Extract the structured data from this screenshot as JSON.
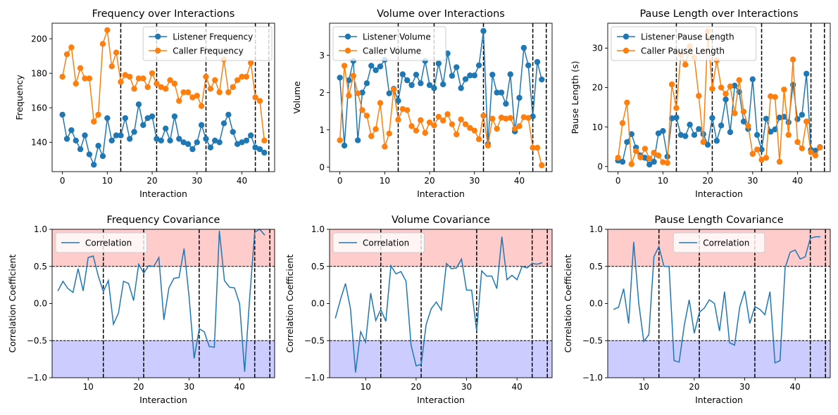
{
  "chart_data": [
    {
      "type": "line",
      "title": "Frequency over Interactions",
      "xlabel": "Interaction",
      "ylabel": "Frequency",
      "xlim": [
        -2.3,
        47.3
      ],
      "ylim": [
        123,
        209
      ],
      "xticks": [
        0,
        10,
        20,
        30,
        40
      ],
      "yticks": [
        140,
        160,
        180,
        200
      ],
      "markers": true,
      "legend": "top-right",
      "vlines": [
        13,
        21,
        32,
        43,
        46
      ],
      "x": [
        0,
        1,
        2,
        3,
        4,
        5,
        6,
        7,
        8,
        9,
        10,
        11,
        12,
        13,
        14,
        15,
        16,
        17,
        18,
        19,
        20,
        21,
        22,
        23,
        24,
        25,
        26,
        27,
        28,
        29,
        30,
        31,
        32,
        33,
        34,
        35,
        36,
        37,
        38,
        39,
        40,
        41,
        42,
        43,
        44,
        45
      ],
      "series": [
        {
          "name": "Listener Frequency",
          "color": "#1f77b4",
          "values": [
            156,
            142,
            147,
            141,
            136,
            144,
            133,
            127,
            138,
            132,
            154,
            141,
            144,
            144,
            154,
            142,
            146,
            162,
            150,
            154,
            155,
            142,
            141,
            148,
            141,
            155,
            142,
            140,
            139,
            136,
            140,
            150,
            142,
            137,
            141,
            140,
            151,
            156,
            146,
            139,
            140,
            141,
            144,
            137,
            136,
            134
          ]
        },
        {
          "name": "Caller Frequency",
          "color": "#ff7f0e",
          "values": [
            178,
            191,
            195,
            174,
            183,
            177,
            177,
            152,
            156,
            197,
            205,
            184,
            192,
            175,
            179,
            178,
            171,
            177,
            177,
            172,
            180,
            174,
            172,
            171,
            176,
            174,
            164,
            169,
            169,
            166,
            167,
            161,
            178,
            171,
            176,
            169,
            188,
            169,
            172,
            176,
            178,
            178,
            186,
            166,
            164,
            141
          ]
        }
      ]
    },
    {
      "type": "line",
      "title": "Volume over Interactions",
      "xlabel": "Interaction",
      "ylabel": "Volume",
      "xlim": [
        -2.3,
        47.3
      ],
      "ylim": [
        -0.12,
        3.86
      ],
      "xticks": [
        0,
        10,
        20,
        30,
        40
      ],
      "yticks": [
        0,
        1,
        2,
        3
      ],
      "markers": true,
      "legend": "top-left",
      "vlines": [
        13,
        21,
        32,
        43,
        46
      ],
      "x": [
        0,
        1,
        2,
        3,
        4,
        5,
        6,
        7,
        8,
        9,
        10,
        11,
        12,
        13,
        14,
        15,
        16,
        17,
        18,
        19,
        20,
        21,
        22,
        23,
        24,
        25,
        26,
        27,
        28,
        29,
        30,
        31,
        32,
        33,
        34,
        35,
        36,
        37,
        38,
        39,
        40,
        41,
        42,
        43,
        44,
        45
      ],
      "series": [
        {
          "name": "Listener Volume",
          "color": "#1f77b4",
          "values": [
            2.4,
            0.58,
            2.33,
            2.85,
            0.72,
            2.0,
            2.25,
            2.72,
            2.6,
            2.7,
            2.88,
            1.98,
            2.1,
            1.78,
            2.49,
            2.33,
            2.2,
            2.48,
            2.25,
            2.85,
            2.2,
            2.12,
            2.78,
            2.22,
            3.05,
            2.45,
            2.68,
            2.12,
            2.36,
            2.46,
            2.46,
            2.73,
            3.65,
            0.62,
            2.48,
            2.0,
            2.0,
            1.7,
            2.49,
            0.96,
            1.86,
            3.2,
            2.73,
            1.36,
            2.82,
            2.35
          ]
        },
        {
          "name": "Caller Volume",
          "color": "#ff7f0e",
          "values": [
            0.72,
            2.72,
            1.92,
            2.45,
            1.98,
            1.53,
            1.38,
            0.83,
            1.02,
            1.72,
            0.55,
            0.9,
            2.08,
            1.27,
            1.56,
            1.53,
            1.1,
            0.98,
            1.26,
            0.92,
            1.2,
            1.12,
            1.35,
            1.25,
            1.42,
            1.15,
            0.88,
            1.28,
            1.15,
            1.05,
            0.98,
            0.75,
            1.38,
            0.58,
            1.3,
            1.03,
            1.33,
            1.3,
            1.32,
            1.03,
            1.1,
            1.34,
            1.32,
            0.52,
            0.52,
            0.05
          ]
        }
      ]
    },
    {
      "type": "line",
      "title": "Pause Length over Interactions",
      "xlabel": "Interaction",
      "ylabel": "Pause Length (s)",
      "xlim": [
        -2.3,
        47.3
      ],
      "ylim": [
        -1.3,
        36.3
      ],
      "xticks": [
        0,
        10,
        20,
        30,
        40
      ],
      "yticks": [
        0,
        10,
        20,
        30
      ],
      "markers": true,
      "legend": "top-left",
      "vlines": [
        13,
        21,
        32,
        43,
        46
      ],
      "x": [
        0,
        1,
        2,
        3,
        4,
        5,
        6,
        7,
        8,
        9,
        10,
        11,
        12,
        13,
        14,
        15,
        16,
        17,
        18,
        19,
        20,
        21,
        22,
        23,
        24,
        25,
        26,
        27,
        28,
        29,
        30,
        31,
        32,
        33,
        34,
        35,
        36,
        37,
        38,
        39,
        40,
        41,
        42,
        43,
        44,
        45
      ],
      "series": [
        {
          "name": "Listener Pause Length",
          "color": "#1f77b4",
          "values": [
            1.5,
            1.2,
            6.2,
            8.2,
            4.8,
            2.8,
            2.2,
            0.5,
            1.2,
            8.4,
            9.0,
            2.5,
            12.2,
            12.4,
            8.0,
            7.7,
            10.6,
            8.0,
            9.5,
            8.2,
            5.5,
            12.3,
            6.5,
            10.4,
            17.0,
            8.7,
            20.5,
            18.9,
            11.4,
            9.5,
            22.1,
            8.0,
            4.3,
            12.1,
            8.8,
            9.4,
            12.4,
            12.6,
            11.2,
            20.7,
            12.0,
            13.1,
            23.5,
            4.2,
            4.0,
            4.9
          ]
        },
        {
          "name": "Caller Pause Length",
          "color": "#ff7f0e",
          "values": [
            2.2,
            11.0,
            16.2,
            0.6,
            3.9,
            2.3,
            4.5,
            2.0,
            3.5,
            2.8,
            1.1,
            0.9,
            20.8,
            14.8,
            28.5,
            25.8,
            30.4,
            27.6,
            17.9,
            6.2,
            34.3,
            19.7,
            26.9,
            20.0,
            18.4,
            20.3,
            13.5,
            21.9,
            13.9,
            10.3,
            3.2,
            4.3,
            1.7,
            2.2,
            17.8,
            17.6,
            1.2,
            19.5,
            8.0,
            27.1,
            6.2,
            4.6,
            11.4,
            3.6,
            2.8,
            4.8
          ]
        }
      ]
    },
    {
      "type": "line",
      "title": "Frequency Covariance",
      "xlabel": "Interaction",
      "ylabel": "Correlation Coefficient",
      "xlim": [
        2.85,
        46.95
      ],
      "ylim": [
        -1.0,
        1.0
      ],
      "xticks": [
        10,
        20,
        30,
        40
      ],
      "yticks": [
        -1.0,
        -0.5,
        0.0,
        0.5,
        1.0
      ],
      "markers": false,
      "legend": "top-left",
      "bands": [
        {
          "from": 0.5,
          "to": 1.0,
          "color": "#ffcccc"
        },
        {
          "from": -1.0,
          "to": -0.5,
          "color": "#ccccff"
        }
      ],
      "hlines": [
        0.5,
        -0.5
      ],
      "vlines": [
        13,
        21,
        32,
        43,
        46
      ],
      "x": [
        4,
        5,
        6,
        7,
        8,
        9,
        10,
        11,
        12,
        13,
        14,
        15,
        16,
        17,
        18,
        19,
        20,
        21,
        22,
        23,
        24,
        25,
        26,
        27,
        28,
        29,
        30,
        31,
        32,
        33,
        34,
        35,
        36,
        37,
        38,
        39,
        40,
        41,
        42,
        43,
        44,
        45
      ],
      "series": [
        {
          "name": "Correlation",
          "color": "#1f77b4",
          "values": [
            0.17,
            0.3,
            0.2,
            0.15,
            0.47,
            0.17,
            0.62,
            0.64,
            0.37,
            0.16,
            0.31,
            -0.28,
            -0.13,
            0.3,
            0.27,
            0.04,
            0.53,
            0.41,
            0.51,
            0.5,
            0.62,
            -0.22,
            0.21,
            0.34,
            0.35,
            0.74,
            0.09,
            -0.74,
            -0.34,
            -0.38,
            -0.58,
            -0.59,
            0.98,
            0.31,
            0.22,
            0.21,
            0.0,
            -0.92,
            0.07,
            0.96,
            1.0,
            0.92
          ]
        }
      ]
    },
    {
      "type": "line",
      "title": "Volume Covariance",
      "xlabel": "Interaction",
      "ylabel": "Correlation Coefficient",
      "xlim": [
        2.85,
        46.95
      ],
      "ylim": [
        -1.0,
        1.0
      ],
      "xticks": [
        10,
        20,
        30,
        40
      ],
      "yticks": [
        -1.0,
        -0.5,
        0.0,
        0.5,
        1.0
      ],
      "markers": false,
      "legend": "top-left",
      "bands": [
        {
          "from": 0.5,
          "to": 1.0,
          "color": "#ffcccc"
        },
        {
          "from": -1.0,
          "to": -0.5,
          "color": "#ccccff"
        }
      ],
      "hlines": [
        0.5,
        -0.5
      ],
      "vlines": [
        13,
        21,
        32,
        43,
        46
      ],
      "x": [
        4,
        5,
        6,
        7,
        8,
        9,
        10,
        11,
        12,
        13,
        14,
        15,
        16,
        17,
        18,
        19,
        20,
        21,
        22,
        23,
        24,
        25,
        26,
        27,
        28,
        29,
        30,
        31,
        32,
        33,
        34,
        35,
        36,
        37,
        38,
        39,
        40,
        41,
        42,
        43,
        44,
        45
      ],
      "series": [
        {
          "name": "Correlation",
          "color": "#1f77b4",
          "values": [
            -0.2,
            0.05,
            0.27,
            -0.07,
            -0.93,
            -0.38,
            -0.52,
            0.14,
            -0.23,
            -0.08,
            -0.24,
            0.51,
            0.4,
            0.43,
            0.3,
            -0.56,
            -0.84,
            -0.82,
            -0.28,
            -0.07,
            0.02,
            -0.09,
            0.54,
            0.47,
            0.48,
            0.6,
            0.18,
            0.18,
            -0.37,
            0.44,
            0.37,
            0.37,
            0.2,
            0.9,
            0.32,
            0.38,
            0.32,
            0.5,
            0.48,
            0.54,
            0.53,
            0.55
          ]
        }
      ]
    },
    {
      "type": "line",
      "title": "Pause Length Covariance",
      "xlabel": "Interaction",
      "ylabel": "Correlation Coefficient",
      "xlim": [
        2.85,
        46.95
      ],
      "ylim": [
        -1.0,
        1.0
      ],
      "xticks": [
        10,
        20,
        30,
        40
      ],
      "yticks": [
        -1.0,
        -0.5,
        0.0,
        0.5,
        1.0
      ],
      "markers": false,
      "legend": "top-center",
      "bands": [
        {
          "from": 0.5,
          "to": 1.0,
          "color": "#ffcccc"
        },
        {
          "from": -1.0,
          "to": -0.5,
          "color": "#ccccff"
        }
      ],
      "hlines": [
        0.5,
        -0.5
      ],
      "vlines": [
        13,
        21,
        32,
        43,
        46
      ],
      "x": [
        4,
        5,
        6,
        7,
        8,
        9,
        10,
        11,
        12,
        13,
        14,
        15,
        16,
        17,
        18,
        19,
        20,
        21,
        22,
        23,
        24,
        25,
        26,
        27,
        28,
        29,
        30,
        31,
        32,
        33,
        34,
        35,
        36,
        37,
        38,
        39,
        40,
        41,
        42,
        43,
        44,
        45
      ],
      "series": [
        {
          "name": "Correlation",
          "color": "#1f77b4",
          "values": [
            -0.08,
            -0.05,
            0.2,
            -0.27,
            0.83,
            0.0,
            -0.51,
            -0.42,
            0.63,
            0.77,
            0.5,
            0.5,
            -0.77,
            -0.79,
            -0.3,
            0.05,
            -0.4,
            -0.12,
            -0.06,
            0.05,
            0.0,
            -0.37,
            0.16,
            -0.53,
            -0.56,
            -0.05,
            0.17,
            -0.27,
            -0.04,
            -0.08,
            -0.15,
            0.16,
            -0.8,
            -0.77,
            0.48,
            0.69,
            0.72,
            0.6,
            0.63,
            0.88,
            0.9,
            0.9
          ]
        }
      ]
    }
  ]
}
